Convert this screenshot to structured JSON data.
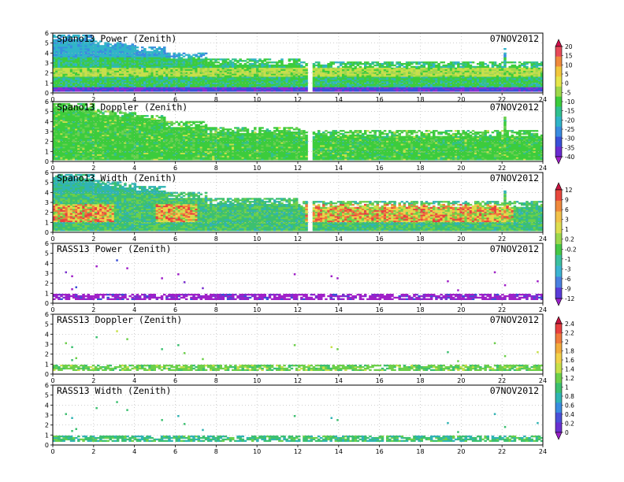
{
  "chart_data": [
    {
      "type": "heatmap",
      "title": "Spano13 Power (Zenith)",
      "date": "07NOV2012",
      "xlim": [
        0,
        24
      ],
      "ylim": [
        0,
        6
      ],
      "xticks": [
        "0",
        "2",
        "4",
        "6",
        "8",
        "10",
        "12",
        "14",
        "16",
        "18",
        "20",
        "22",
        "24"
      ],
      "yticks": [
        "0",
        "1",
        "2",
        "3",
        "4",
        "5",
        "6"
      ],
      "grid": true,
      "pattern": "power",
      "colorbar": [
        "20",
        "15",
        "10",
        "5",
        "0",
        "-5",
        "-10",
        "-15",
        "-20",
        "-25",
        "-30",
        "-35",
        "-40"
      ]
    },
    {
      "type": "heatmap",
      "title": "Spano13 Doppler (Zenith)",
      "date": "07NOV2012",
      "xlim": [
        0,
        24
      ],
      "ylim": [
        0,
        6
      ],
      "xticks": [
        "0",
        "2",
        "4",
        "6",
        "8",
        "10",
        "12",
        "14",
        "16",
        "18",
        "20",
        "22",
        "24"
      ],
      "yticks": [
        "0",
        "1",
        "2",
        "3",
        "4",
        "5",
        "6"
      ],
      "grid": true,
      "pattern": "doppler"
    },
    {
      "type": "heatmap",
      "title": "Spano13 Width (Zenith)",
      "date": "07NOV2012",
      "xlim": [
        0,
        24
      ],
      "ylim": [
        0,
        6
      ],
      "xticks": [
        "0",
        "2",
        "4",
        "6",
        "8",
        "10",
        "12",
        "14",
        "16",
        "18",
        "20",
        "22",
        "24"
      ],
      "yticks": [
        "0",
        "1",
        "2",
        "3",
        "4",
        "5",
        "6"
      ],
      "grid": true,
      "pattern": "width",
      "colorbar": [
        "12",
        "9",
        "6",
        "3",
        "1",
        "0.2",
        "-0.2",
        "-1",
        "-3",
        "-6",
        "-9",
        "-12"
      ]
    },
    {
      "type": "heatmap",
      "title": "RASS13 Power (Zenith)",
      "date": "07NOV2012",
      "xlim": [
        0,
        24
      ],
      "ylim": [
        0,
        6
      ],
      "xticks": [
        "0",
        "2",
        "4",
        "6",
        "8",
        "10",
        "12",
        "14",
        "16",
        "18",
        "20",
        "22",
        "24"
      ],
      "yticks": [
        "0",
        "1",
        "2",
        "3",
        "4",
        "5",
        "6"
      ],
      "grid": true,
      "pattern": "rasspower"
    },
    {
      "type": "heatmap",
      "title": "RASS13 Doppler (Zenith)",
      "date": "07NOV2012",
      "xlim": [
        0,
        24
      ],
      "ylim": [
        0,
        6
      ],
      "xticks": [
        "0",
        "2",
        "4",
        "6",
        "8",
        "10",
        "12",
        "14",
        "16",
        "18",
        "20",
        "22",
        "24"
      ],
      "yticks": [
        "0",
        "1",
        "2",
        "3",
        "4",
        "5",
        "6"
      ],
      "grid": true,
      "pattern": "rassdoppler",
      "colorbar": [
        "2.4",
        "2.2",
        "2",
        "1.8",
        "1.6",
        "1.4",
        "1.2",
        "1",
        "0.8",
        "0.6",
        "0.4",
        "0.2",
        "0"
      ]
    },
    {
      "type": "heatmap",
      "title": "RASS13 Width (Zenith)",
      "date": "07NOV2012",
      "xlim": [
        0,
        24
      ],
      "ylim": [
        0,
        6
      ],
      "xticks": [
        "0",
        "2",
        "4",
        "6",
        "8",
        "10",
        "12",
        "14",
        "16",
        "18",
        "20",
        "22",
        "24"
      ],
      "yticks": [
        "0",
        "1",
        "2",
        "3",
        "4",
        "5",
        "6"
      ],
      "grid": true,
      "pattern": "rasswidth"
    }
  ],
  "colors": {
    "colorbar1": [
      "#d0104a",
      "#e84a5a",
      "#f08a3c",
      "#f2c73c",
      "#e6e64a",
      "#9fd84a",
      "#3ccc3c",
      "#30c090",
      "#30b4c8",
      "#3a8ce0",
      "#3a50d8",
      "#6a2cd0",
      "#a020c8"
    ],
    "colorbar2": [
      "#c81440",
      "#e8483c",
      "#f08a3c",
      "#f2c24a",
      "#dede50",
      "#9cd84c",
      "#46c846",
      "#3cc0a0",
      "#3cb4d2",
      "#4a80e0",
      "#5a3cd8",
      "#9a20c8"
    ],
    "colorbar3": [
      "#c81440",
      "#e84040",
      "#f07a3c",
      "#f2ac3c",
      "#f2d24a",
      "#c8e04a",
      "#6cd04a",
      "#3cc070",
      "#30b4b4",
      "#3a8ce0",
      "#4a50d8",
      "#6a30d0",
      "#9a20c8"
    ]
  }
}
